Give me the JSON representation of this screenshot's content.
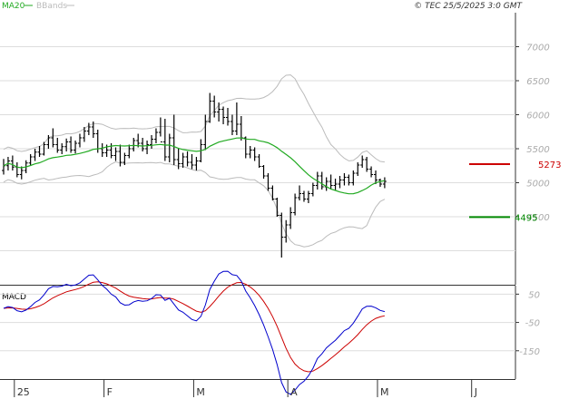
{
  "header": {
    "ind1": "MA20",
    "ind2": "BBands",
    "ind1_color": "#22aa22",
    "ind2_color": "#bbbbbb",
    "copyright": "© TEC 25/5/2025 3:0 GMT"
  },
  "macd_label": "MACD",
  "markers": {
    "resistance": {
      "value": 5273,
      "label": "5273",
      "color": "#cc0000"
    },
    "support": {
      "value": 4495,
      "label": "4495",
      "color": "#008800"
    }
  },
  "chart_data": [
    {
      "type": "ohlc",
      "panel": "price",
      "y_ticks": [
        {
          "v": 4500,
          "label": "4500"
        },
        {
          "v": 5000,
          "label": "5000"
        },
        {
          "v": 5500,
          "label": "5500"
        },
        {
          "v": 6000,
          "label": "6000"
        },
        {
          "v": 6500,
          "label": "6500"
        },
        {
          "v": 7000,
          "label": "7000"
        }
      ],
      "ylim": [
        3500,
        7500
      ],
      "bars": [
        [
          5180,
          5350,
          5120,
          5250
        ],
        [
          5250,
          5380,
          5180,
          5320
        ],
        [
          5320,
          5400,
          5180,
          5230
        ],
        [
          5230,
          5300,
          5080,
          5120
        ],
        [
          5120,
          5240,
          5050,
          5180
        ],
        [
          5180,
          5330,
          5140,
          5290
        ],
        [
          5290,
          5420,
          5250,
          5380
        ],
        [
          5380,
          5500,
          5320,
          5450
        ],
        [
          5450,
          5540,
          5380,
          5420
        ],
        [
          5420,
          5600,
          5400,
          5560
        ],
        [
          5560,
          5700,
          5500,
          5660
        ],
        [
          5660,
          5800,
          5520,
          5560
        ],
        [
          5560,
          5660,
          5440,
          5480
        ],
        [
          5480,
          5580,
          5420,
          5530
        ],
        [
          5530,
          5650,
          5460,
          5600
        ],
        [
          5600,
          5680,
          5440,
          5480
        ],
        [
          5480,
          5620,
          5430,
          5580
        ],
        [
          5580,
          5720,
          5520,
          5660
        ],
        [
          5660,
          5820,
          5600,
          5760
        ],
        [
          5760,
          5880,
          5700,
          5820
        ],
        [
          5820,
          5900,
          5660,
          5720
        ],
        [
          5720,
          5780,
          5440,
          5500
        ],
        [
          5500,
          5580,
          5380,
          5440
        ],
        [
          5440,
          5560,
          5380,
          5480
        ],
        [
          5480,
          5580,
          5360,
          5400
        ],
        [
          5400,
          5520,
          5320,
          5460
        ],
        [
          5460,
          5560,
          5240,
          5300
        ],
        [
          5300,
          5440,
          5260,
          5400
        ],
        [
          5400,
          5560,
          5360,
          5500
        ],
        [
          5500,
          5660,
          5460,
          5620
        ],
        [
          5620,
          5720,
          5520,
          5580
        ],
        [
          5580,
          5660,
          5460,
          5500
        ],
        [
          5500,
          5620,
          5420,
          5560
        ],
        [
          5560,
          5700,
          5500,
          5640
        ],
        [
          5640,
          5800,
          5580,
          5740
        ],
        [
          5740,
          5960,
          5680,
          5600
        ],
        [
          5600,
          5940,
          5320,
          5380
        ],
        [
          5380,
          5720,
          5300,
          5660
        ],
        [
          5660,
          6000,
          5260,
          5340
        ],
        [
          5340,
          5500,
          5200,
          5280
        ],
        [
          5280,
          5440,
          5220,
          5380
        ],
        [
          5380,
          5460,
          5240,
          5300
        ],
        [
          5300,
          5420,
          5200,
          5260
        ],
        [
          5260,
          5380,
          5180,
          5320
        ],
        [
          5320,
          5640,
          5300,
          5560
        ],
        [
          5560,
          6000,
          5480,
          5900
        ],
        [
          5900,
          6320,
          5880,
          6200
        ],
        [
          6200,
          6280,
          5960,
          6040
        ],
        [
          6040,
          6180,
          5900,
          6080
        ],
        [
          6080,
          6120,
          5860,
          5960
        ],
        [
          5960,
          6100,
          5840,
          5900
        ],
        [
          5900,
          6000,
          5700,
          5760
        ],
        [
          5760,
          6180,
          5700,
          5860
        ],
        [
          5860,
          5980,
          5620,
          5660
        ],
        [
          5660,
          5680,
          5360,
          5420
        ],
        [
          5420,
          5540,
          5360,
          5480
        ],
        [
          5480,
          5520,
          5320,
          5380
        ],
        [
          5380,
          5420,
          5220,
          5240
        ],
        [
          5240,
          5260,
          5060,
          5100
        ],
        [
          5100,
          5140,
          4880,
          4920
        ],
        [
          4920,
          4960,
          4740,
          4760
        ],
        [
          4760,
          4780,
          4500,
          4520
        ],
        [
          4520,
          4560,
          3900,
          4200
        ],
        [
          4200,
          4450,
          4120,
          4380
        ],
        [
          4380,
          4640,
          4320,
          4560
        ],
        [
          4560,
          4840,
          4520,
          4780
        ],
        [
          4780,
          4960,
          4740,
          4840
        ],
        [
          4840,
          4880,
          4720,
          4760
        ],
        [
          4760,
          4880,
          4700,
          4840
        ],
        [
          4840,
          5000,
          4800,
          4960
        ],
        [
          4960,
          5160,
          4900,
          5100
        ],
        [
          5100,
          5160,
          4900,
          4940
        ],
        [
          4940,
          5080,
          4880,
          5020
        ],
        [
          5020,
          5120,
          4900,
          4960
        ],
        [
          4960,
          5060,
          4880,
          4980
        ],
        [
          4980,
          5100,
          4920,
          5040
        ],
        [
          5040,
          5140,
          4960,
          5080
        ],
        [
          5080,
          5120,
          4960,
          5000
        ],
        [
          5000,
          5180,
          4960,
          5140
        ],
        [
          5140,
          5300,
          5100,
          5260
        ],
        [
          5260,
          5400,
          5220,
          5340
        ],
        [
          5340,
          5380,
          5160,
          5200
        ],
        [
          5200,
          5240,
          5080,
          5120
        ],
        [
          5120,
          5180,
          4980,
          5040
        ],
        [
          5040,
          5060,
          4940,
          4980
        ],
        [
          4980,
          5080,
          4920,
          5020
        ]
      ],
      "x_axis_labels": [
        {
          "index": 3,
          "label": "25"
        },
        {
          "index": 23,
          "label": "F"
        },
        {
          "index": 43,
          "label": "M"
        },
        {
          "index": 64,
          "label": "A"
        },
        {
          "index": 84,
          "label": "M"
        },
        {
          "index": 105,
          "label": "J"
        }
      ],
      "indicators": [
        "MA20",
        "BBands"
      ]
    },
    {
      "type": "line",
      "panel": "macd",
      "title": "MACD",
      "y_ticks": [
        {
          "v": 50,
          "label": "50"
        },
        {
          "v": -50,
          "label": "-50"
        },
        {
          "v": -150,
          "label": "-150"
        }
      ],
      "ylim": [
        -250,
        80
      ]
    }
  ]
}
